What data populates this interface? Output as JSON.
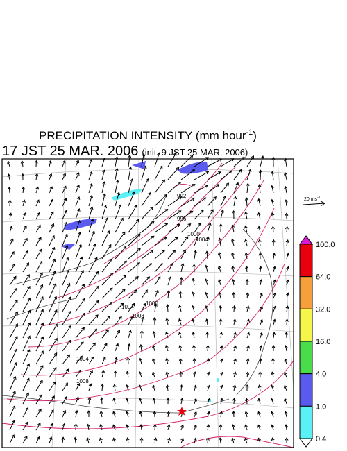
{
  "header": {
    "title": "PRECIPITATION INTENSITY (mm hour",
    "title_exp": "-1",
    "title_end": ")",
    "valid_time": "17 JST 25 MAR. 2006",
    "init_time": "(init. 9 JST 25 MAR. 2006)"
  },
  "wind_legend": {
    "label": "20 ms",
    "label_exp": "-1"
  },
  "colorbar": {
    "levels": [
      "100.0",
      "64.0",
      "32.0",
      "16.0",
      "4.0",
      "1.0",
      "0.4"
    ],
    "colors": [
      "#d81ad8",
      "#e8000f",
      "#f5a03a",
      "#f5f54a",
      "#4adc4a",
      "#5a5aee",
      "#5af0f5",
      "#ffffff"
    ]
  },
  "contour_labels": [
    "992",
    "996",
    "1000",
    "1004",
    "1004",
    "1008",
    "1000",
    "1004",
    "1008"
  ]
}
